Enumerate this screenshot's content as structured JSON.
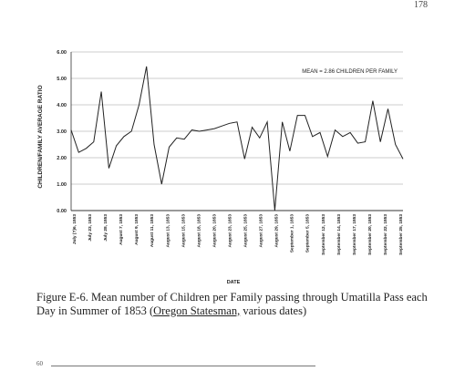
{
  "page_number": "178",
  "footer_number": "60",
  "caption": {
    "figure": "Figure E-6.  Mean number of Children per Family passing through Umatilla Pass each Day in Summer of 1853 (",
    "source": "Oregon Statesman,",
    "tail": " various dates)"
  },
  "chart_data": {
    "type": "line",
    "title": "",
    "xlabel": "DATE",
    "ylabel": "CHILDREN/FAMILY AVERAGE RATIO",
    "annotation": "MEAN = 2.86 CHILDREN PER FAMILY",
    "ylim": [
      0,
      6
    ],
    "yticks": [
      "0.00",
      "1.00",
      "2.00",
      "3.00",
      "4.00",
      "5.00",
      "6.00"
    ],
    "grid": true,
    "x_tick_labels": [
      "July (?)6, 1853",
      "July 23, 1853",
      "July 28, 1853",
      "August 7, 1853",
      "August 9, 1853",
      "August 11, 1853",
      "August 13, 1853",
      "August 15, 1853",
      "August 18, 1853",
      "August 20, 1853",
      "August 23, 1853",
      "August 25, 1853",
      "August 27, 1853",
      "August 29, 1853",
      "September 1, 1853",
      "September 5, 1853",
      "September 12, 1853",
      "September 14, 1853",
      "September 17, 1853",
      "September 20, 1853",
      "September 22, 1853",
      "September 25, 1853"
    ],
    "values": [
      3.05,
      2.2,
      2.35,
      2.6,
      4.5,
      1.6,
      2.45,
      2.8,
      3.0,
      4.0,
      5.45,
      2.5,
      1.0,
      2.4,
      2.75,
      2.7,
      3.05,
      3.0,
      3.05,
      3.1,
      3.2,
      3.3,
      3.35,
      1.95,
      3.15,
      2.75,
      3.35,
      0.0,
      3.35,
      2.25,
      3.6,
      3.6,
      2.8,
      2.95,
      2.05,
      3.05,
      2.8,
      2.95,
      2.55,
      2.6,
      4.15,
      2.6,
      3.85,
      2.5,
      1.95
    ]
  }
}
